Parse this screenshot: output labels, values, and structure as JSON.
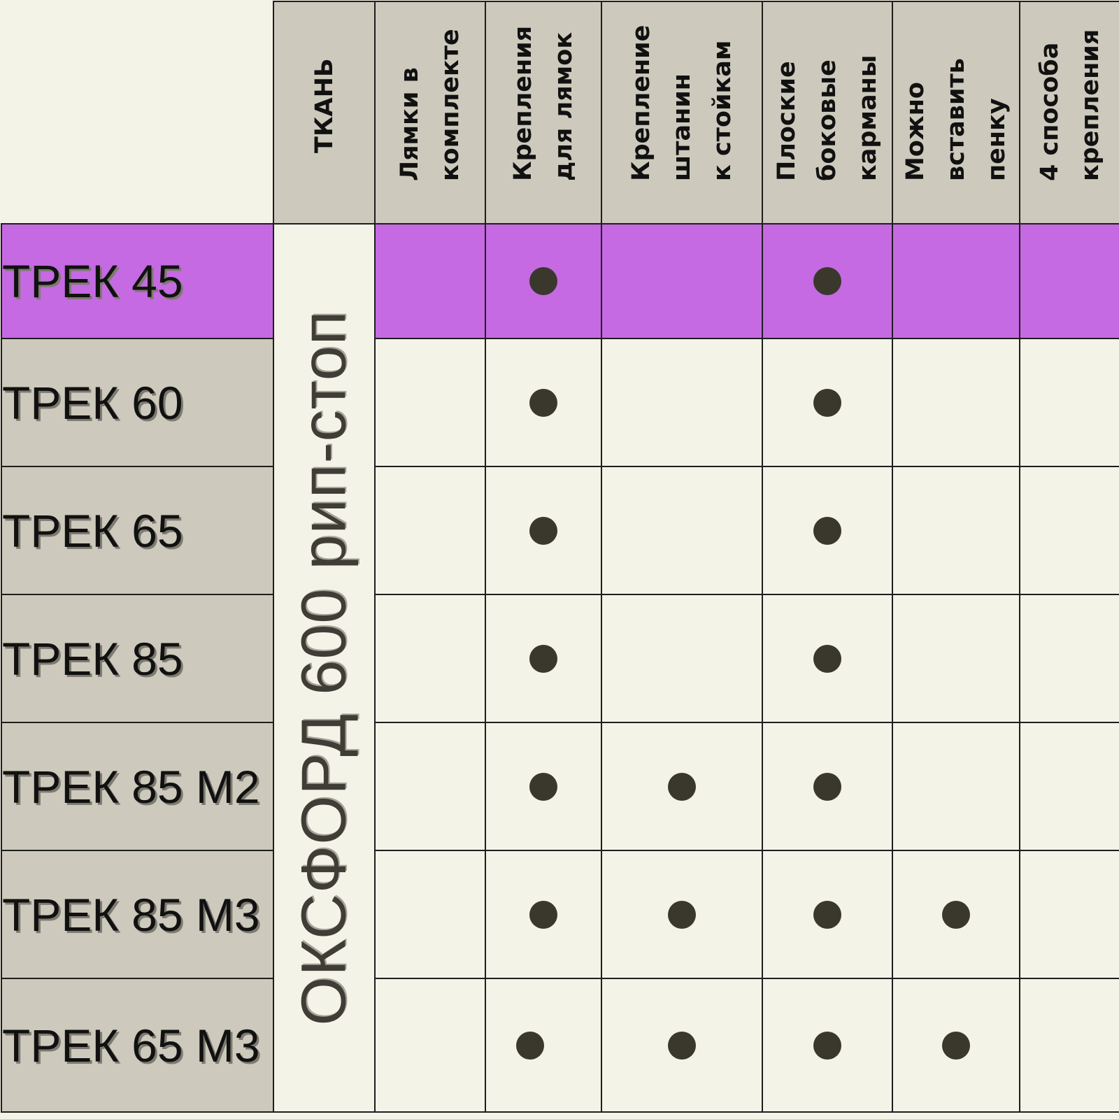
{
  "table": {
    "headers": [
      "ТКАНЬ",
      "Лямки в\nкомплекте",
      "Крепления\nдля лямок",
      "Крепление\nштанин\nк стойкам",
      "Плоские\nбоковые\nкарманы",
      "Можно\nвставить\nпенку",
      "4 способа\nкрепления"
    ],
    "fabric": "ОКСФОРД 600 рип-стоп",
    "rows": [
      {
        "model": "ТРЕК 45",
        "highlight": true,
        "marks": [
          false,
          true,
          false,
          true,
          false,
          false
        ]
      },
      {
        "model": "ТРЕК 60",
        "highlight": false,
        "marks": [
          false,
          true,
          false,
          true,
          false,
          false
        ]
      },
      {
        "model": "ТРЕК 65",
        "highlight": false,
        "marks": [
          false,
          true,
          false,
          true,
          false,
          false
        ]
      },
      {
        "model": "ТРЕК 85",
        "highlight": false,
        "marks": [
          false,
          true,
          false,
          true,
          false,
          false
        ]
      },
      {
        "model": "ТРЕК 85 М2",
        "highlight": false,
        "marks": [
          false,
          true,
          true,
          true,
          false,
          false
        ]
      },
      {
        "model": "ТРЕК 85 М3",
        "highlight": false,
        "marks": [
          false,
          true,
          true,
          true,
          true,
          false
        ]
      },
      {
        "model": "ТРЕК 65 М3",
        "highlight": false,
        "marks": [
          false,
          true,
          true,
          true,
          true,
          false
        ]
      }
    ]
  },
  "colors": {
    "header_bg": "#cdc9bc",
    "cell_bg": "#f4f3e8",
    "highlight": "#c56ae2",
    "dot": "#3a382c"
  }
}
